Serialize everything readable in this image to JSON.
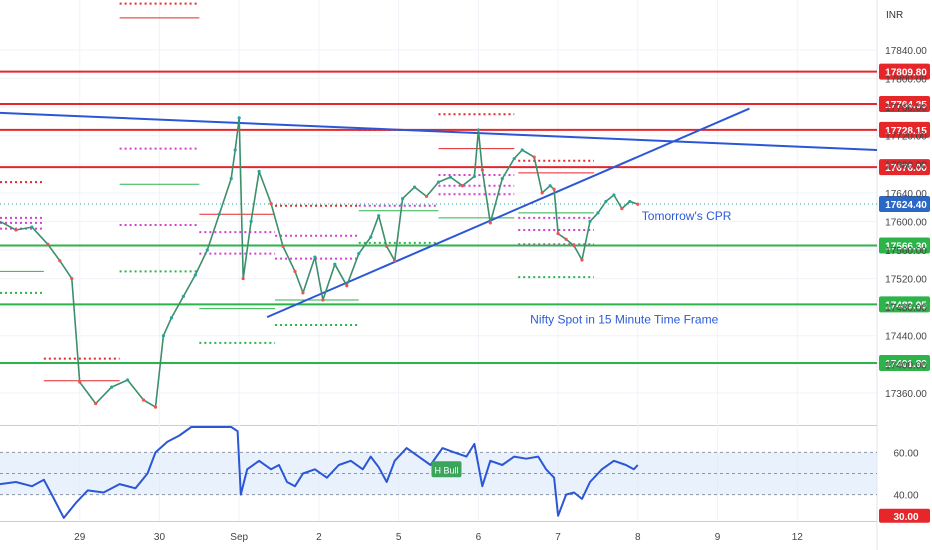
{
  "chart_data": {
    "type": "line",
    "currency": "INR",
    "price_axis": {
      "ylim": [
        17315,
        17910
      ],
      "ticks": [
        17840,
        17800,
        17760,
        17720,
        17680,
        17640,
        17600,
        17560,
        17520,
        17480,
        17440,
        17400,
        17360
      ],
      "tick_labels": [
        "17840.00",
        "17800.00",
        "17760.00",
        "17720.00",
        "17680.00",
        "17640.00",
        "17600.00",
        "17560.00",
        "17520.00",
        "17480.00",
        "17440.00",
        "17400.00",
        "17360.00"
      ]
    },
    "x_axis": {
      "xlim": [
        -0.5,
        10.5
      ],
      "ticks": [
        {
          "x": 0.5,
          "label": "29"
        },
        {
          "x": 1.5,
          "label": "30"
        },
        {
          "x": 2.5,
          "label": "Sep"
        },
        {
          "x": 3.5,
          "label": "2"
        },
        {
          "x": 4.5,
          "label": "5"
        },
        {
          "x": 5.5,
          "label": "6"
        },
        {
          "x": 6.5,
          "label": "7"
        },
        {
          "x": 7.5,
          "label": "8"
        },
        {
          "x": 8.5,
          "label": "9"
        },
        {
          "x": 9.5,
          "label": "12"
        }
      ]
    },
    "levels": [
      {
        "value": 17809.8,
        "label": "17809.80",
        "color": "#e5262b"
      },
      {
        "value": 17764.35,
        "label": "17764.35",
        "color": "#e5262b"
      },
      {
        "value": 17728.15,
        "label": "17728.15",
        "color": "#e5262b"
      },
      {
        "value": 17676.0,
        "label": "17676.00",
        "color": "#e5262b"
      },
      {
        "value": 17566.3,
        "label": "17566.30",
        "color": "#2db34a"
      },
      {
        "value": 17483.95,
        "label": "17483.95",
        "color": "#2db34a"
      },
      {
        "value": 17401.8,
        "label": "17401.80",
        "color": "#2db34a"
      }
    ],
    "last_price": {
      "value": 17624.4,
      "label": "17624.40",
      "color": "#2d67c5"
    },
    "trendlines": [
      {
        "color": "#2b57d6",
        "points": [
          [
            -0.5,
            17752
          ],
          [
            10.5,
            17700
          ]
        ]
      },
      {
        "color": "#2b57d6",
        "points": [
          [
            2.85,
            17466
          ],
          [
            8.9,
            17758
          ]
        ]
      }
    ],
    "price_series": [
      [
        -0.5,
        17600
      ],
      [
        -0.3,
        17588
      ],
      [
        -0.1,
        17592
      ],
      [
        0.1,
        17568
      ],
      [
        0.25,
        17545
      ],
      [
        0.4,
        17520
      ],
      [
        0.5,
        17375
      ],
      [
        0.7,
        17345
      ],
      [
        0.9,
        17368
      ],
      [
        1.1,
        17378
      ],
      [
        1.3,
        17350
      ],
      [
        1.45,
        17340
      ],
      [
        1.55,
        17440
      ],
      [
        1.65,
        17465
      ],
      [
        1.8,
        17495
      ],
      [
        1.95,
        17525
      ],
      [
        2.1,
        17560
      ],
      [
        2.25,
        17610
      ],
      [
        2.4,
        17660
      ],
      [
        2.45,
        17700
      ],
      [
        2.5,
        17745
      ],
      [
        2.55,
        17520
      ],
      [
        2.65,
        17600
      ],
      [
        2.75,
        17670
      ],
      [
        2.9,
        17625
      ],
      [
        3.05,
        17565
      ],
      [
        3.2,
        17530
      ],
      [
        3.3,
        17500
      ],
      [
        3.45,
        17550
      ],
      [
        3.55,
        17490
      ],
      [
        3.7,
        17540
      ],
      [
        3.85,
        17510
      ],
      [
        4.0,
        17555
      ],
      [
        4.15,
        17578
      ],
      [
        4.25,
        17608
      ],
      [
        4.35,
        17565
      ],
      [
        4.45,
        17545
      ],
      [
        4.55,
        17632
      ],
      [
        4.7,
        17648
      ],
      [
        4.85,
        17635
      ],
      [
        5.0,
        17655
      ],
      [
        5.15,
        17662
      ],
      [
        5.3,
        17650
      ],
      [
        5.45,
        17663
      ],
      [
        5.5,
        17728
      ],
      [
        5.55,
        17672
      ],
      [
        5.65,
        17598
      ],
      [
        5.8,
        17660
      ],
      [
        5.95,
        17688
      ],
      [
        6.05,
        17700
      ],
      [
        6.2,
        17690
      ],
      [
        6.3,
        17640
      ],
      [
        6.4,
        17650
      ],
      [
        6.45,
        17645
      ],
      [
        6.5,
        17583
      ],
      [
        6.6,
        17575
      ],
      [
        6.7,
        17566
      ],
      [
        6.8,
        17546
      ],
      [
        6.9,
        17600
      ],
      [
        7.0,
        17612
      ],
      [
        7.1,
        17628
      ],
      [
        7.2,
        17637
      ],
      [
        7.3,
        17618
      ],
      [
        7.4,
        17628
      ],
      [
        7.5,
        17624
      ]
    ],
    "cpr_levels": [
      {
        "x": [
          -0.5,
          0.05
        ],
        "value": 17655,
        "color": "#e5262b",
        "style": "dotted"
      },
      {
        "x": [
          -0.5,
          0.05
        ],
        "value": 17605,
        "color": "#d63fcf",
        "style": "dotted"
      },
      {
        "x": [
          -0.5,
          0.05
        ],
        "value": 17598,
        "color": "#d63fcf",
        "style": "dotted"
      },
      {
        "x": [
          -0.5,
          0.05
        ],
        "value": 17590,
        "color": "#d63fcf",
        "style": "dotted"
      },
      {
        "x": [
          -0.5,
          0.05
        ],
        "value": 17500,
        "color": "#2db34a",
        "style": "dotted"
      },
      {
        "x": [
          -0.5,
          0.05
        ],
        "value": 17530,
        "color": "#2db34a",
        "style": "solid"
      },
      {
        "x": [
          0.05,
          1.0
        ],
        "value": 17408,
        "color": "#e5262b",
        "style": "dotted"
      },
      {
        "x": [
          0.05,
          1.0
        ],
        "value": 17377,
        "color": "#e5262b",
        "style": "solid"
      },
      {
        "x": [
          1.0,
          2.0
        ],
        "value": 17905,
        "color": "#e5262b",
        "style": "dotted"
      },
      {
        "x": [
          1.0,
          2.0
        ],
        "value": 17885,
        "color": "#e5262b",
        "style": "solid"
      },
      {
        "x": [
          1.0,
          2.0
        ],
        "value": 17702,
        "color": "#d63fcf",
        "style": "dotted"
      },
      {
        "x": [
          1.0,
          2.0
        ],
        "value": 17595,
        "color": "#d63fcf",
        "style": "dotted"
      },
      {
        "x": [
          1.0,
          2.0
        ],
        "value": 17530,
        "color": "#2db34a",
        "style": "dotted"
      },
      {
        "x": [
          1.0,
          2.0
        ],
        "value": 17652,
        "color": "#2db34a",
        "style": "solid"
      },
      {
        "x": [
          2.0,
          2.95
        ],
        "value": 17610,
        "color": "#e5262b",
        "style": "solid"
      },
      {
        "x": [
          2.0,
          2.95
        ],
        "value": 17585,
        "color": "#d63fcf",
        "style": "dotted"
      },
      {
        "x": [
          2.0,
          2.95
        ],
        "value": 17555,
        "color": "#d63fcf",
        "style": "dotted"
      },
      {
        "x": [
          2.0,
          2.95
        ],
        "value": 17430,
        "color": "#2db34a",
        "style": "dotted"
      },
      {
        "x": [
          2.0,
          2.95
        ],
        "value": 17478,
        "color": "#2db34a",
        "style": "solid"
      },
      {
        "x": [
          2.95,
          4.0
        ],
        "value": 17622,
        "color": "#e5262b",
        "style": "dotted"
      },
      {
        "x": [
          2.95,
          4.0
        ],
        "value": 17580,
        "color": "#d63fcf",
        "style": "dotted"
      },
      {
        "x": [
          2.95,
          4.0
        ],
        "value": 17548,
        "color": "#d63fcf",
        "style": "dotted"
      },
      {
        "x": [
          2.95,
          4.0
        ],
        "value": 17455,
        "color": "#2db34a",
        "style": "dotted"
      },
      {
        "x": [
          2.95,
          4.0
        ],
        "value": 17490,
        "color": "#2db34a",
        "style": "solid"
      },
      {
        "x": [
          4.0,
          5.0
        ],
        "value": 17728,
        "color": "#e5262b",
        "style": "dotted"
      },
      {
        "x": [
          4.0,
          5.0
        ],
        "value": 17622,
        "color": "#d63fcf",
        "style": "dotted"
      },
      {
        "x": [
          4.0,
          5.0
        ],
        "value": 17570,
        "color": "#2db34a",
        "style": "dotted"
      },
      {
        "x": [
          4.0,
          5.0
        ],
        "value": 17615,
        "color": "#2db34a",
        "style": "solid"
      },
      {
        "x": [
          5.0,
          5.95
        ],
        "value": 17750,
        "color": "#e5262b",
        "style": "dotted"
      },
      {
        "x": [
          5.0,
          5.95
        ],
        "value": 17702,
        "color": "#e5262b",
        "style": "solid"
      },
      {
        "x": [
          5.0,
          5.95
        ],
        "value": 17665,
        "color": "#d63fcf",
        "style": "dotted"
      },
      {
        "x": [
          5.0,
          5.95
        ],
        "value": 17650,
        "color": "#d63fcf",
        "style": "dotted"
      },
      {
        "x": [
          5.0,
          5.95
        ],
        "value": 17638,
        "color": "#d63fcf",
        "style": "dotted"
      },
      {
        "x": [
          5.0,
          5.95
        ],
        "value": 17605,
        "color": "#2db34a",
        "style": "solid"
      },
      {
        "x": [
          6.0,
          6.95
        ],
        "value": 17685,
        "color": "#e5262b",
        "style": "dotted"
      },
      {
        "x": [
          6.0,
          6.95
        ],
        "value": 17668,
        "color": "#e5262b",
        "style": "solid"
      },
      {
        "x": [
          6.0,
          6.95
        ],
        "value": 17605,
        "color": "#d63fcf",
        "style": "dotted"
      },
      {
        "x": [
          6.0,
          6.95
        ],
        "value": 17588,
        "color": "#d63fcf",
        "style": "dotted"
      },
      {
        "x": [
          6.0,
          6.95
        ],
        "value": 17568,
        "color": "#d63fcf",
        "style": "dotted"
      },
      {
        "x": [
          6.0,
          6.95
        ],
        "value": 17522,
        "color": "#2db34a",
        "style": "dotted"
      },
      {
        "x": [
          6.0,
          6.95
        ],
        "value": 17612,
        "color": "#2db34a",
        "style": "solid"
      }
    ],
    "annotations": [
      {
        "text": "Tomorrow's CPR",
        "x": 7.55,
        "y": 17602
      },
      {
        "text": "Nifty Spot in 15 Minute Time Frame",
        "x": 6.15,
        "y": 17457
      }
    ],
    "rsi": {
      "ylim": [
        28,
        72
      ],
      "band": [
        40,
        60
      ],
      "midline": 50,
      "tick_labels": [
        {
          "value": 60,
          "label": "60.00"
        },
        {
          "value": 40,
          "label": "40.00"
        },
        {
          "value": 30,
          "label": "30.00"
        }
      ],
      "badge": {
        "text": "H Bull",
        "x": 5.1,
        "y": 52
      },
      "series": [
        [
          -0.5,
          45
        ],
        [
          -0.3,
          46
        ],
        [
          -0.1,
          44
        ],
        [
          0.05,
          47
        ],
        [
          0.15,
          40
        ],
        [
          0.3,
          29
        ],
        [
          0.45,
          36
        ],
        [
          0.6,
          42
        ],
        [
          0.8,
          41
        ],
        [
          1.0,
          45
        ],
        [
          1.2,
          43
        ],
        [
          1.35,
          50
        ],
        [
          1.45,
          60
        ],
        [
          1.6,
          65
        ],
        [
          1.75,
          68
        ],
        [
          1.9,
          72
        ],
        [
          2.4,
          72
        ],
        [
          2.48,
          70
        ],
        [
          2.52,
          40
        ],
        [
          2.6,
          52
        ],
        [
          2.75,
          56
        ],
        [
          2.9,
          52
        ],
        [
          3.0,
          54
        ],
        [
          3.1,
          46
        ],
        [
          3.2,
          44
        ],
        [
          3.3,
          50
        ],
        [
          3.45,
          52
        ],
        [
          3.6,
          48
        ],
        [
          3.75,
          54
        ],
        [
          3.9,
          56
        ],
        [
          4.05,
          52
        ],
        [
          4.15,
          58
        ],
        [
          4.25,
          53
        ],
        [
          4.35,
          46
        ],
        [
          4.45,
          56
        ],
        [
          4.6,
          62
        ],
        [
          4.75,
          58
        ],
        [
          4.9,
          54
        ],
        [
          5.05,
          62
        ],
        [
          5.2,
          60
        ],
        [
          5.35,
          58
        ],
        [
          5.45,
          64
        ],
        [
          5.55,
          44
        ],
        [
          5.65,
          56
        ],
        [
          5.8,
          54
        ],
        [
          5.95,
          58
        ],
        [
          6.1,
          57
        ],
        [
          6.25,
          58
        ],
        [
          6.35,
          52
        ],
        [
          6.45,
          48
        ],
        [
          6.5,
          30
        ],
        [
          6.6,
          40
        ],
        [
          6.7,
          41
        ],
        [
          6.8,
          38
        ],
        [
          6.9,
          46
        ],
        [
          7.05,
          52
        ],
        [
          7.2,
          56
        ],
        [
          7.35,
          54
        ],
        [
          7.45,
          52
        ],
        [
          7.5,
          54
        ]
      ]
    }
  }
}
